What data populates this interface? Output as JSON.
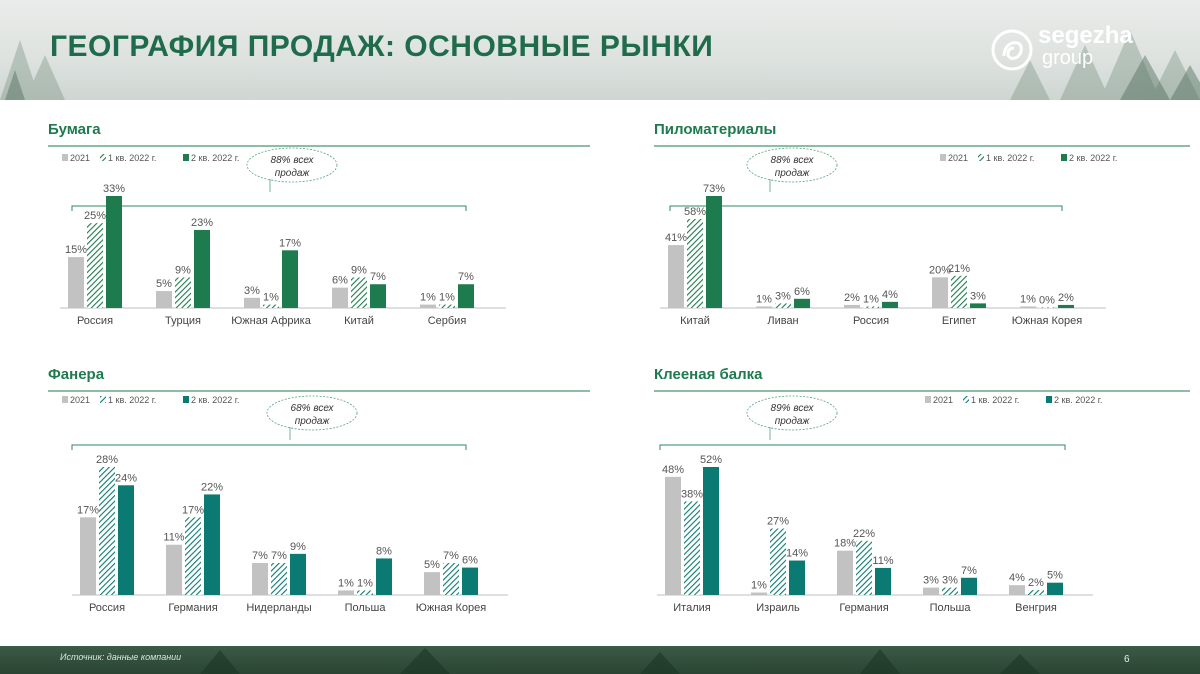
{
  "page": {
    "title": "ГЕОГРАФИЯ ПРОДАЖ: ОСНОВНЫЕ РЫНКИ",
    "logo_main": "segezha",
    "logo_sub": "group",
    "source": "Источник: данные компании",
    "page_number": "6"
  },
  "colors": {
    "accent": "#1f7a4f",
    "gray_2021": "#c2c2c2",
    "green": "#1e7b4e",
    "teal": "#0b7a72"
  },
  "chart_data": [
    {
      "id": "paper",
      "type": "bar",
      "title": "Бумага",
      "legend": [
        "2021",
        "1 кв. 2022 г.",
        "2 кв. 2022 г."
      ],
      "bubble": [
        "88% всех",
        "продаж"
      ],
      "accent": "#1e7b4e",
      "categories": [
        "Россия",
        "Турция",
        "Южная Африка",
        "Китай",
        "Сербия"
      ],
      "series": [
        {
          "name": "2021",
          "values": [
            15,
            5,
            3,
            6,
            1
          ],
          "labels": [
            "15%",
            "5%",
            "3%",
            "6%",
            "1%"
          ]
        },
        {
          "name": "1 кв. 2022 г.",
          "values": [
            25,
            9,
            1,
            9,
            1
          ],
          "labels": [
            "25%",
            "9%",
            "1%",
            "9%",
            "1%"
          ]
        },
        {
          "name": "2 кв. 2022 г.",
          "values": [
            33,
            23,
            17,
            7,
            7
          ],
          "labels": [
            "33%",
            "23%",
            "17%",
            "7%",
            "7%"
          ]
        }
      ],
      "ymax": 33
    },
    {
      "id": "lumber",
      "type": "bar",
      "title": "Пиломатериалы",
      "legend": [
        "2021",
        "1 кв. 2022 г.",
        "2 кв. 2022 г."
      ],
      "bubble": [
        "88% всех",
        "продаж"
      ],
      "accent": "#1e7b4e",
      "categories": [
        "Китай",
        "Ливан",
        "Россия",
        "Египет",
        "Южная Корея"
      ],
      "series": [
        {
          "name": "2021",
          "values": [
            41,
            1,
            2,
            20,
            1
          ],
          "labels": [
            "41%",
            "1%",
            "2%",
            "20%",
            "1%"
          ]
        },
        {
          "name": "1 кв. 2022 г.",
          "values": [
            58,
            3,
            1,
            21,
            0
          ],
          "labels": [
            "58%",
            "3%",
            "1%",
            "21%",
            "0%"
          ]
        },
        {
          "name": "2 кв. 2022 г.",
          "values": [
            73,
            6,
            4,
            3,
            2
          ],
          "labels": [
            "73%",
            "6%",
            "4%",
            "3%",
            "2%"
          ]
        }
      ],
      "ymax": 73
    },
    {
      "id": "plywood",
      "type": "bar",
      "title": "Фанера",
      "legend": [
        "2021",
        "1 кв. 2022 г.",
        "2 кв. 2022 г."
      ],
      "bubble": [
        "68% всех",
        "продаж"
      ],
      "accent": "#0b7a72",
      "categories": [
        "Россия",
        "Германия",
        "Нидерланды",
        "Польша",
        "Южная Корея"
      ],
      "series": [
        {
          "name": "2021",
          "values": [
            17,
            11,
            7,
            1,
            5
          ],
          "labels": [
            "17%",
            "11%",
            "7%",
            "1%",
            "5%"
          ]
        },
        {
          "name": "1 кв. 2022 г.",
          "values": [
            28,
            17,
            7,
            1,
            7
          ],
          "labels": [
            "28%",
            "17%",
            "7%",
            "1%",
            "7%"
          ]
        },
        {
          "name": "2 кв. 2022 г.",
          "values": [
            24,
            22,
            9,
            8,
            6
          ],
          "labels": [
            "24%",
            "22%",
            "9%",
            "8%",
            "6%"
          ]
        }
      ],
      "ymax": 28
    },
    {
      "id": "glulam",
      "type": "bar",
      "title": "Клееная балка",
      "legend": [
        "2021",
        "1 кв. 2022 г.",
        "2 кв. 2022 г."
      ],
      "bubble": [
        "89% всех",
        "продаж"
      ],
      "accent": "#0b7a72",
      "categories": [
        "Италия",
        "Израиль",
        "Германия",
        "Польша",
        "Венгрия"
      ],
      "series": [
        {
          "name": "2021",
          "values": [
            48,
            1,
            18,
            3,
            4
          ],
          "labels": [
            "48%",
            "1%",
            "18%",
            "3%",
            "4%"
          ]
        },
        {
          "name": "1 кв. 2022 г.",
          "values": [
            38,
            27,
            22,
            3,
            2
          ],
          "labels": [
            "38%",
            "27%",
            "22%",
            "3%",
            "2%"
          ]
        },
        {
          "name": "2 кв. 2022 г.",
          "values": [
            52,
            14,
            11,
            7,
            5
          ],
          "labels": [
            "52%",
            "14%",
            "11%",
            "7%",
            "5%"
          ]
        }
      ],
      "ymax": 52
    }
  ]
}
